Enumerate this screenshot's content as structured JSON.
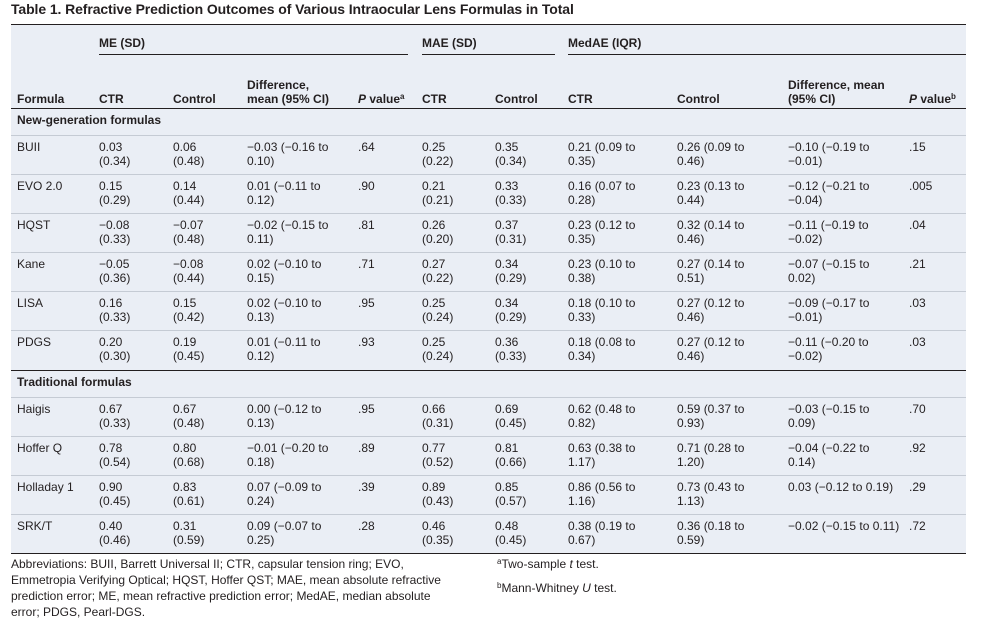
{
  "caption": "Table 1. Refractive Prediction Outcomes of Various Intraocular Lens Formulas in Total",
  "groups": {
    "me": "ME (SD)",
    "mae": "MAE (SD)",
    "medae": "MedAE (IQR)"
  },
  "headers": {
    "formula": "Formula",
    "me_ctr": "CTR",
    "me_control": "Control",
    "me_diff": "Difference, mean (95% CI)",
    "me_p_label": "P",
    "me_p_suffix": " value",
    "me_p_note": "a",
    "mae_ctr": "CTR",
    "mae_control": "Control",
    "medae_ctr": "CTR",
    "medae_control": "Control",
    "medae_diff": "Difference, mean (95% CI)",
    "medae_p_label": "P",
    "medae_p_suffix": " value",
    "medae_p_note": "b"
  },
  "sections": [
    {
      "title": "New-generation formulas",
      "rows": [
        {
          "formula": "BUII",
          "me_ctr": "0.03 (0.34)",
          "me_control": "0.06 (0.48)",
          "me_diff": "−0.03 (−0.16 to 0.10)",
          "me_p": ".64",
          "mae_ctr": "0.25 (0.22)",
          "mae_control": "0.35 (0.34)",
          "medae_ctr": "0.21 (0.09 to 0.35)",
          "medae_control": "0.26 (0.09 to 0.46)",
          "medae_diff": "−0.10 (−0.19 to −0.01)",
          "medae_p": ".15"
        },
        {
          "formula": "EVO 2.0",
          "me_ctr": "0.15 (0.29)",
          "me_control": "0.14 (0.44)",
          "me_diff": "0.01 (−0.11 to 0.12)",
          "me_p": ".90",
          "mae_ctr": "0.21 (0.21)",
          "mae_control": "0.33 (0.33)",
          "medae_ctr": "0.16 (0.07 to 0.28)",
          "medae_control": "0.23 (0.13 to 0.44)",
          "medae_diff": "−0.12 (−0.21 to −0.04)",
          "medae_p": ".005"
        },
        {
          "formula": "HQST",
          "me_ctr": "−0.08 (0.33)",
          "me_control": "−0.07 (0.48)",
          "me_diff": "−0.02 (−0.15 to 0.11)",
          "me_p": ".81",
          "mae_ctr": "0.26 (0.20)",
          "mae_control": "0.37 (0.31)",
          "medae_ctr": "0.23 (0.12 to 0.35)",
          "medae_control": "0.32 (0.14 to 0.46)",
          "medae_diff": "−0.11 (−0.19 to −0.02)",
          "medae_p": ".04"
        },
        {
          "formula": "Kane",
          "me_ctr": "−0.05 (0.36)",
          "me_control": "−0.08 (0.44)",
          "me_diff": "0.02 (−0.10 to 0.15)",
          "me_p": ".71",
          "mae_ctr": "0.27 (0.22)",
          "mae_control": "0.34 (0.29)",
          "medae_ctr": "0.23 (0.10 to 0.38)",
          "medae_control": "0.27 (0.14 to 0.51)",
          "medae_diff": "−0.07 (−0.15 to 0.02)",
          "medae_p": ".21"
        },
        {
          "formula": "LISA",
          "me_ctr": "0.16 (0.33)",
          "me_control": "0.15 (0.42)",
          "me_diff": "0.02 (−0.10 to 0.13)",
          "me_p": ".95",
          "mae_ctr": "0.25 (0.24)",
          "mae_control": "0.34 (0.29)",
          "medae_ctr": "0.18 (0.10 to 0.33)",
          "medae_control": "0.27 (0.12 to 0.46)",
          "medae_diff": "−0.09 (−0.17 to −0.01)",
          "medae_p": ".03"
        },
        {
          "formula": "PDGS",
          "me_ctr": "0.20 (0.30)",
          "me_control": "0.19 (0.45)",
          "me_diff": "0.01 (−0.11 to 0.12)",
          "me_p": ".93",
          "mae_ctr": "0.25 (0.24)",
          "mae_control": "0.36 (0.33)",
          "medae_ctr": "0.18 (0.08 to 0.34)",
          "medae_control": "0.27 (0.12 to 0.46)",
          "medae_diff": "−0.11 (−0.20 to −0.02)",
          "medae_p": ".03"
        }
      ]
    },
    {
      "title": "Traditional formulas",
      "rows": [
        {
          "formula": "Haigis",
          "me_ctr": "0.67 (0.33)",
          "me_control": "0.67 (0.48)",
          "me_diff": "0.00 (−0.12 to 0.13)",
          "me_p": ".95",
          "mae_ctr": "0.66 (0.31)",
          "mae_control": "0.69 (0.45)",
          "medae_ctr": "0.62 (0.48 to 0.82)",
          "medae_control": "0.59 (0.37 to 0.93)",
          "medae_diff": "−0.03 (−0.15 to 0.09)",
          "medae_p": ".70"
        },
        {
          "formula": "Hoffer Q",
          "me_ctr": "0.78 (0.54)",
          "me_control": "0.80 (0.68)",
          "me_diff": "−0.01 (−0.20 to 0.18)",
          "me_p": ".89",
          "mae_ctr": "0.77 (0.52)",
          "mae_control": "0.81 (0.66)",
          "medae_ctr": "0.63 (0.38 to 1.17)",
          "medae_control": "0.71 (0.28 to 1.20)",
          "medae_diff": "−0.04 (−0.22 to 0.14)",
          "medae_p": ".92"
        },
        {
          "formula": "Holladay 1",
          "me_ctr": "0.90 (0.45)",
          "me_control": "0.83 (0.61)",
          "me_diff": "0.07 (−0.09 to 0.24)",
          "me_p": ".39",
          "mae_ctr": "0.89 (0.43)",
          "mae_control": "0.85 (0.57)",
          "medae_ctr": "0.86 (0.56 to 1.16)",
          "medae_control": "0.73 (0.43 to 1.13)",
          "medae_diff": "0.03 (−0.12 to 0.19)",
          "medae_p": ".29"
        },
        {
          "formula": "SRK/T",
          "me_ctr": "0.40 (0.46)",
          "me_control": "0.31 (0.59)",
          "me_diff": "0.09 (−0.07 to 0.25)",
          "me_p": ".28",
          "mae_ctr": "0.46 (0.35)",
          "mae_control": "0.48 (0.45)",
          "medae_ctr": "0.38 (0.19 to 0.67)",
          "medae_control": "0.36 (0.18 to 0.59)",
          "medae_diff": "−0.02 (−0.15 to 0.11)",
          "medae_p": ".72"
        }
      ]
    }
  ],
  "footnotes": {
    "abbreviations": "Abbreviations: BUII, Barrett Universal II; CTR, capsular tension ring; EVO, Emmetropia Verifying Optical; HQST, Hoffer QST; MAE, mean absolute refractive prediction error; ME, mean refractive prediction error; MedAE, median absolute error; PDGS, Pearl-DGS.",
    "note_a_mark": "a",
    "note_a_text_1": "Two-sample ",
    "note_a_italic": "t",
    "note_a_text_2": " test.",
    "note_b_mark": "b",
    "note_b_text_1": "Mann-Whitney ",
    "note_b_italic": "U",
    "note_b_text_2": " test."
  }
}
